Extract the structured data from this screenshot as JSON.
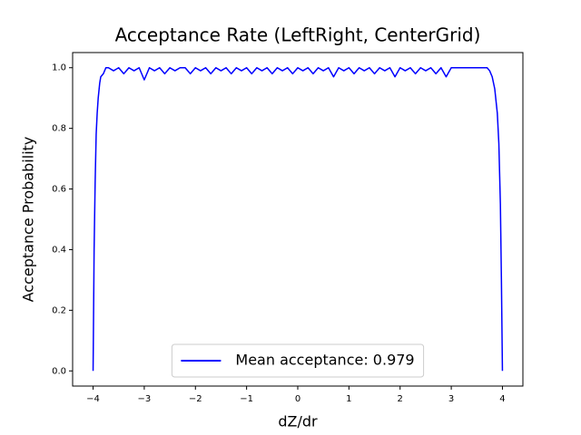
{
  "chart_data": {
    "type": "line",
    "title": "Acceptance Rate (LeftRight, CenterGrid)",
    "x_label": "dZ/dr",
    "y_label": "Acceptance Probability",
    "x": [
      -4.0,
      -3.98,
      -3.96,
      -3.94,
      -3.92,
      -3.9,
      -3.87,
      -3.85,
      -3.8,
      -3.75,
      -3.7,
      -3.6,
      -3.5,
      -3.4,
      -3.3,
      -3.2,
      -3.1,
      -3.0,
      -2.9,
      -2.8,
      -2.7,
      -2.6,
      -2.5,
      -2.4,
      -2.3,
      -2.2,
      -2.1,
      -2.0,
      -1.9,
      -1.8,
      -1.7,
      -1.6,
      -1.5,
      -1.4,
      -1.3,
      -1.2,
      -1.1,
      -1.0,
      -0.9,
      -0.8,
      -0.7,
      -0.6,
      -0.5,
      -0.4,
      -0.3,
      -0.2,
      -0.1,
      0,
      0.1,
      0.2,
      0.3,
      0.4,
      0.5,
      0.6,
      0.7,
      0.8,
      0.9,
      1.0,
      1.1,
      1.2,
      1.3,
      1.4,
      1.5,
      1.6,
      1.7,
      1.8,
      1.9,
      2.0,
      2.1,
      2.2,
      2.3,
      2.4,
      2.5,
      2.6,
      2.7,
      2.8,
      2.9,
      3.0,
      3.1,
      3.2,
      3.3,
      3.4,
      3.5,
      3.6,
      3.7,
      3.75,
      3.8,
      3.85,
      3.9,
      3.93,
      3.96,
      3.98,
      4.0
    ],
    "series": [
      {
        "name": "Mean acceptance: 0.979",
        "color": "#0000ff",
        "values": [
          0,
          0.4,
          0.62,
          0.78,
          0.85,
          0.9,
          0.95,
          0.97,
          0.98,
          1.0,
          1.0,
          0.99,
          1.0,
          0.98,
          1.0,
          0.99,
          1.0,
          0.96,
          1.0,
          0.99,
          1.0,
          0.98,
          1.0,
          0.99,
          1.0,
          1.0,
          0.98,
          1.0,
          0.99,
          1.0,
          0.98,
          1.0,
          0.99,
          1.0,
          0.98,
          1.0,
          0.99,
          1.0,
          0.98,
          1.0,
          0.99,
          1.0,
          0.98,
          1.0,
          0.99,
          1.0,
          0.98,
          1.0,
          0.99,
          1.0,
          0.98,
          1.0,
          0.99,
          1.0,
          0.97,
          1.0,
          0.99,
          1.0,
          0.98,
          1.0,
          0.99,
          1.0,
          0.98,
          1.0,
          0.99,
          1.0,
          0.97,
          1.0,
          0.99,
          1.0,
          0.98,
          1.0,
          0.99,
          1.0,
          0.98,
          1.0,
          0.97,
          1.0,
          1.0,
          1.0,
          1.0,
          1.0,
          1.0,
          1.0,
          1.0,
          0.99,
          0.97,
          0.93,
          0.85,
          0.75,
          0.55,
          0.3,
          0
        ]
      }
    ],
    "xlim": [
      -4.4,
      4.4
    ],
    "ylim": [
      -0.05,
      1.05
    ],
    "xticks": [
      {
        "value": -4,
        "label": "−4"
      },
      {
        "value": -3,
        "label": "−3"
      },
      {
        "value": -2,
        "label": "−2"
      },
      {
        "value": -1,
        "label": "−1"
      },
      0,
      1,
      2,
      3,
      4
    ],
    "yticks": [
      {
        "value": 0,
        "label": "0.0"
      },
      {
        "value": 0.2,
        "label": "0.2"
      },
      {
        "value": 0.4,
        "label": "0.4"
      },
      {
        "value": 0.6,
        "label": "0.6"
      },
      {
        "value": 0.8,
        "label": "0.8"
      },
      {
        "value": 1,
        "label": "1.0"
      }
    ],
    "grid": false,
    "legend_position": "lower center"
  }
}
